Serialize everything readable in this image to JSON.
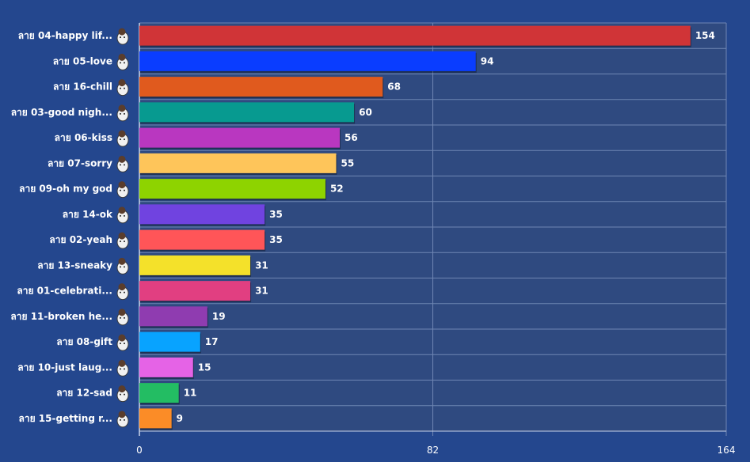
{
  "chart_data": {
    "type": "bar",
    "orientation": "horizontal",
    "categories": [
      "ลาย 04-happy lif...",
      "ลาย 05-love",
      "ลาย 16-chill",
      "ลาย 03-good nigh...",
      "ลาย 06-kiss",
      "ลาย 07-sorry",
      "ลาย 09-oh my god",
      "ลาย 14-ok",
      "ลาย 02-yeah",
      "ลาย 13-sneaky",
      "ลาย 01-celebrati...",
      "ลาย 11-broken he...",
      "ลาย 08-gift",
      "ลาย 10-just laug...",
      "ลาย 12-sad",
      "ลาย 15-getting r..."
    ],
    "values": [
      154,
      94,
      68,
      60,
      56,
      55,
      52,
      35,
      35,
      31,
      31,
      19,
      17,
      15,
      11,
      9
    ],
    "colors": [
      "#d03437",
      "#0a3dff",
      "#e05a1e",
      "#079a90",
      "#b937c0",
      "#fec55a",
      "#8ed300",
      "#7043e0",
      "#ff5558",
      "#f4e12a",
      "#e13f81",
      "#8f3cb0",
      "#08a3ff",
      "#e563e6",
      "#23bd63",
      "#fb8c27"
    ],
    "xlim": [
      0,
      164
    ],
    "x_ticks": [
      "0",
      "82",
      "164"
    ],
    "grid": true,
    "title": "",
    "xlabel": "",
    "ylabel": ""
  },
  "colors": {
    "background": "#24478e",
    "plot_background": "#2f4a80",
    "grid": "#6f86b3"
  }
}
